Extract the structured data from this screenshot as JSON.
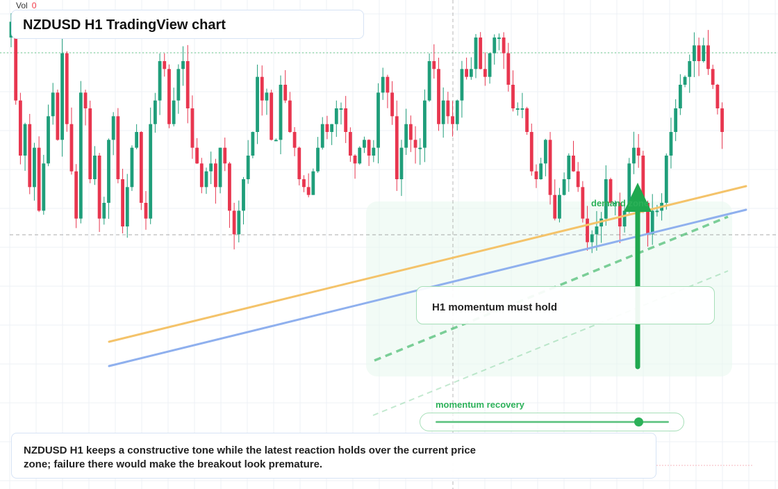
{
  "header": {
    "title": "NZDUSD H1 TradingView chart"
  },
  "volume": {
    "label": "Vol",
    "value": "0"
  },
  "annotations": {
    "zone_label": "demand zone",
    "callout_text": "H1 momentum must hold",
    "momentum_label": "momentum recovery",
    "momentum_level": 0.87
  },
  "summary": {
    "text": "NZDUSD H1 keeps a constructive tone while the latest reaction holds over the current price zone; failure there would make the breakout look premature."
  },
  "colors": {
    "up": "#1f9e7a",
    "down": "#e8364f",
    "accent_green": "#2cb159",
    "trend_orange": "#f4c36a",
    "trend_blue": "#8fb0ee"
  },
  "chart_data": {
    "type": "candlestick",
    "symbol": "NZDUSD",
    "timeframe": "H1",
    "ylim": [
      0.54,
      0.6
    ],
    "price_rows": [
      0.599,
      0.589,
      0.582,
      0.586,
      0.578,
      0.583,
      0.575,
      0.581,
      0.587,
      0.59,
      0.584,
      0.595,
      0.586,
      0.58,
      0.574,
      0.59,
      0.588,
      0.579,
      0.582,
      0.574,
      0.576,
      0.584,
      0.587,
      0.579,
      0.573,
      0.578,
      0.583,
      0.585,
      0.576,
      0.574,
      0.586,
      0.589,
      0.594,
      0.593,
      0.586,
      0.589,
      0.593,
      0.594,
      0.588,
      0.583,
      0.581,
      0.578,
      0.58,
      0.581,
      0.578,
      0.583,
      0.581,
      0.575,
      0.572,
      0.575,
      0.579,
      0.582,
      0.585,
      0.592,
      0.589,
      0.59,
      0.584,
      0.584,
      0.591,
      0.589,
      0.585,
      0.583,
      0.579,
      0.578,
      0.577,
      0.58,
      0.583,
      0.586,
      0.585,
      0.586,
      0.588,
      0.588,
      0.585,
      0.582,
      0.581,
      0.583,
      0.584,
      0.582,
      0.583,
      0.59,
      0.592,
      0.59,
      0.587,
      0.579,
      0.583,
      0.586,
      0.584,
      0.583,
      0.583,
      0.589,
      0.594,
      0.593,
      0.586,
      0.589,
      0.587,
      0.586,
      0.589,
      0.593,
      0.592,
      0.593,
      0.597,
      0.593,
      0.592,
      0.595,
      0.597,
      0.597,
      0.595,
      0.591,
      0.588,
      0.588,
      0.588,
      0.585,
      0.58,
      0.579,
      0.581,
      0.584,
      0.577,
      0.574,
      0.577,
      0.579,
      0.582,
      0.58,
      0.578,
      0.574,
      0.571,
      0.572,
      0.573,
      0.574,
      0.579,
      0.576,
      0.576,
      0.573,
      0.575,
      0.581,
      0.583,
      0.582,
      0.576,
      0.572,
      0.575,
      0.575,
      0.576,
      0.582,
      0.585,
      0.588,
      0.591,
      0.592,
      0.594,
      0.596,
      0.594,
      0.596,
      0.593,
      0.591,
      0.588,
      0.585
    ]
  }
}
